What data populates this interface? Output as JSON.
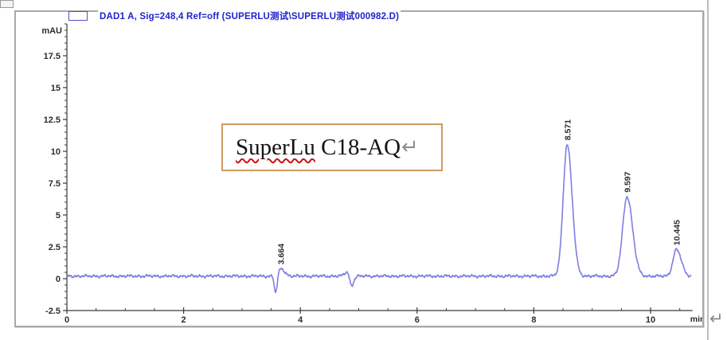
{
  "page": {
    "background": "#ffffff",
    "return_mark": "↵"
  },
  "legend": {
    "text": "DAD1 A, Sig=248,4 Ref=off (SUPERLU测试\\SUPERLU测试000982.D)",
    "color": "#2222cc",
    "box_border_color": "#5151cf"
  },
  "annotation": {
    "word": "SuperLu",
    "rest": " C18-AQ",
    "return_mark": "↵",
    "border_color": "#d09a62",
    "squiggle_color": "#cc1111"
  },
  "chart_data": {
    "type": "line",
    "title": "DAD1 A, Sig=248,4 Ref=off (SUPERLU测试\\SUPERLU测试000982.D)",
    "xlabel": "min",
    "ylabel": "mAU",
    "xlim": [
      0,
      10.72
    ],
    "ylim": [
      -2.5,
      20
    ],
    "x_major_ticks": [
      0,
      2,
      4,
      6,
      8,
      10
    ],
    "x_minor_step": 0.5,
    "y_major_ticks": [
      -2.5,
      0,
      2.5,
      5,
      7.5,
      10,
      12.5,
      15,
      17.5
    ],
    "y_minor_step": 0.5,
    "grid": false,
    "legend_position": "top-left",
    "trace_color": "#7e7ee2",
    "axis_color": "#3a3a3a",
    "tick_label_color": "#2b2b33",
    "baseline_mau": 0.2,
    "noise_amp_mau": 0.1,
    "peaks": [
      {
        "rt_min": 3.664,
        "label": "3.664",
        "height_mau": 0.6,
        "sigma_left": 0.045,
        "sigma_right": 0.065
      },
      {
        "rt_min": 8.571,
        "label": "8.571",
        "height_mau": 10.35,
        "sigma_left": 0.068,
        "sigma_right": 0.085
      },
      {
        "rt_min": 9.597,
        "label": "9.597",
        "height_mau": 6.25,
        "sigma_left": 0.075,
        "sigma_right": 0.095
      },
      {
        "rt_min": 10.445,
        "label": "10.445",
        "height_mau": 2.1,
        "sigma_left": 0.06,
        "sigma_right": 0.08
      }
    ],
    "disturbances": [
      {
        "rt_min": 3.575,
        "height_mau": -1.35,
        "sigma_left": 0.022,
        "sigma_right": 0.03
      },
      {
        "rt_min": 4.8,
        "height_mau": 0.32,
        "sigma_left": 0.045,
        "sigma_right": 0.035
      },
      {
        "rt_min": 4.875,
        "height_mau": -0.75,
        "sigma_left": 0.028,
        "sigma_right": 0.038
      }
    ]
  }
}
